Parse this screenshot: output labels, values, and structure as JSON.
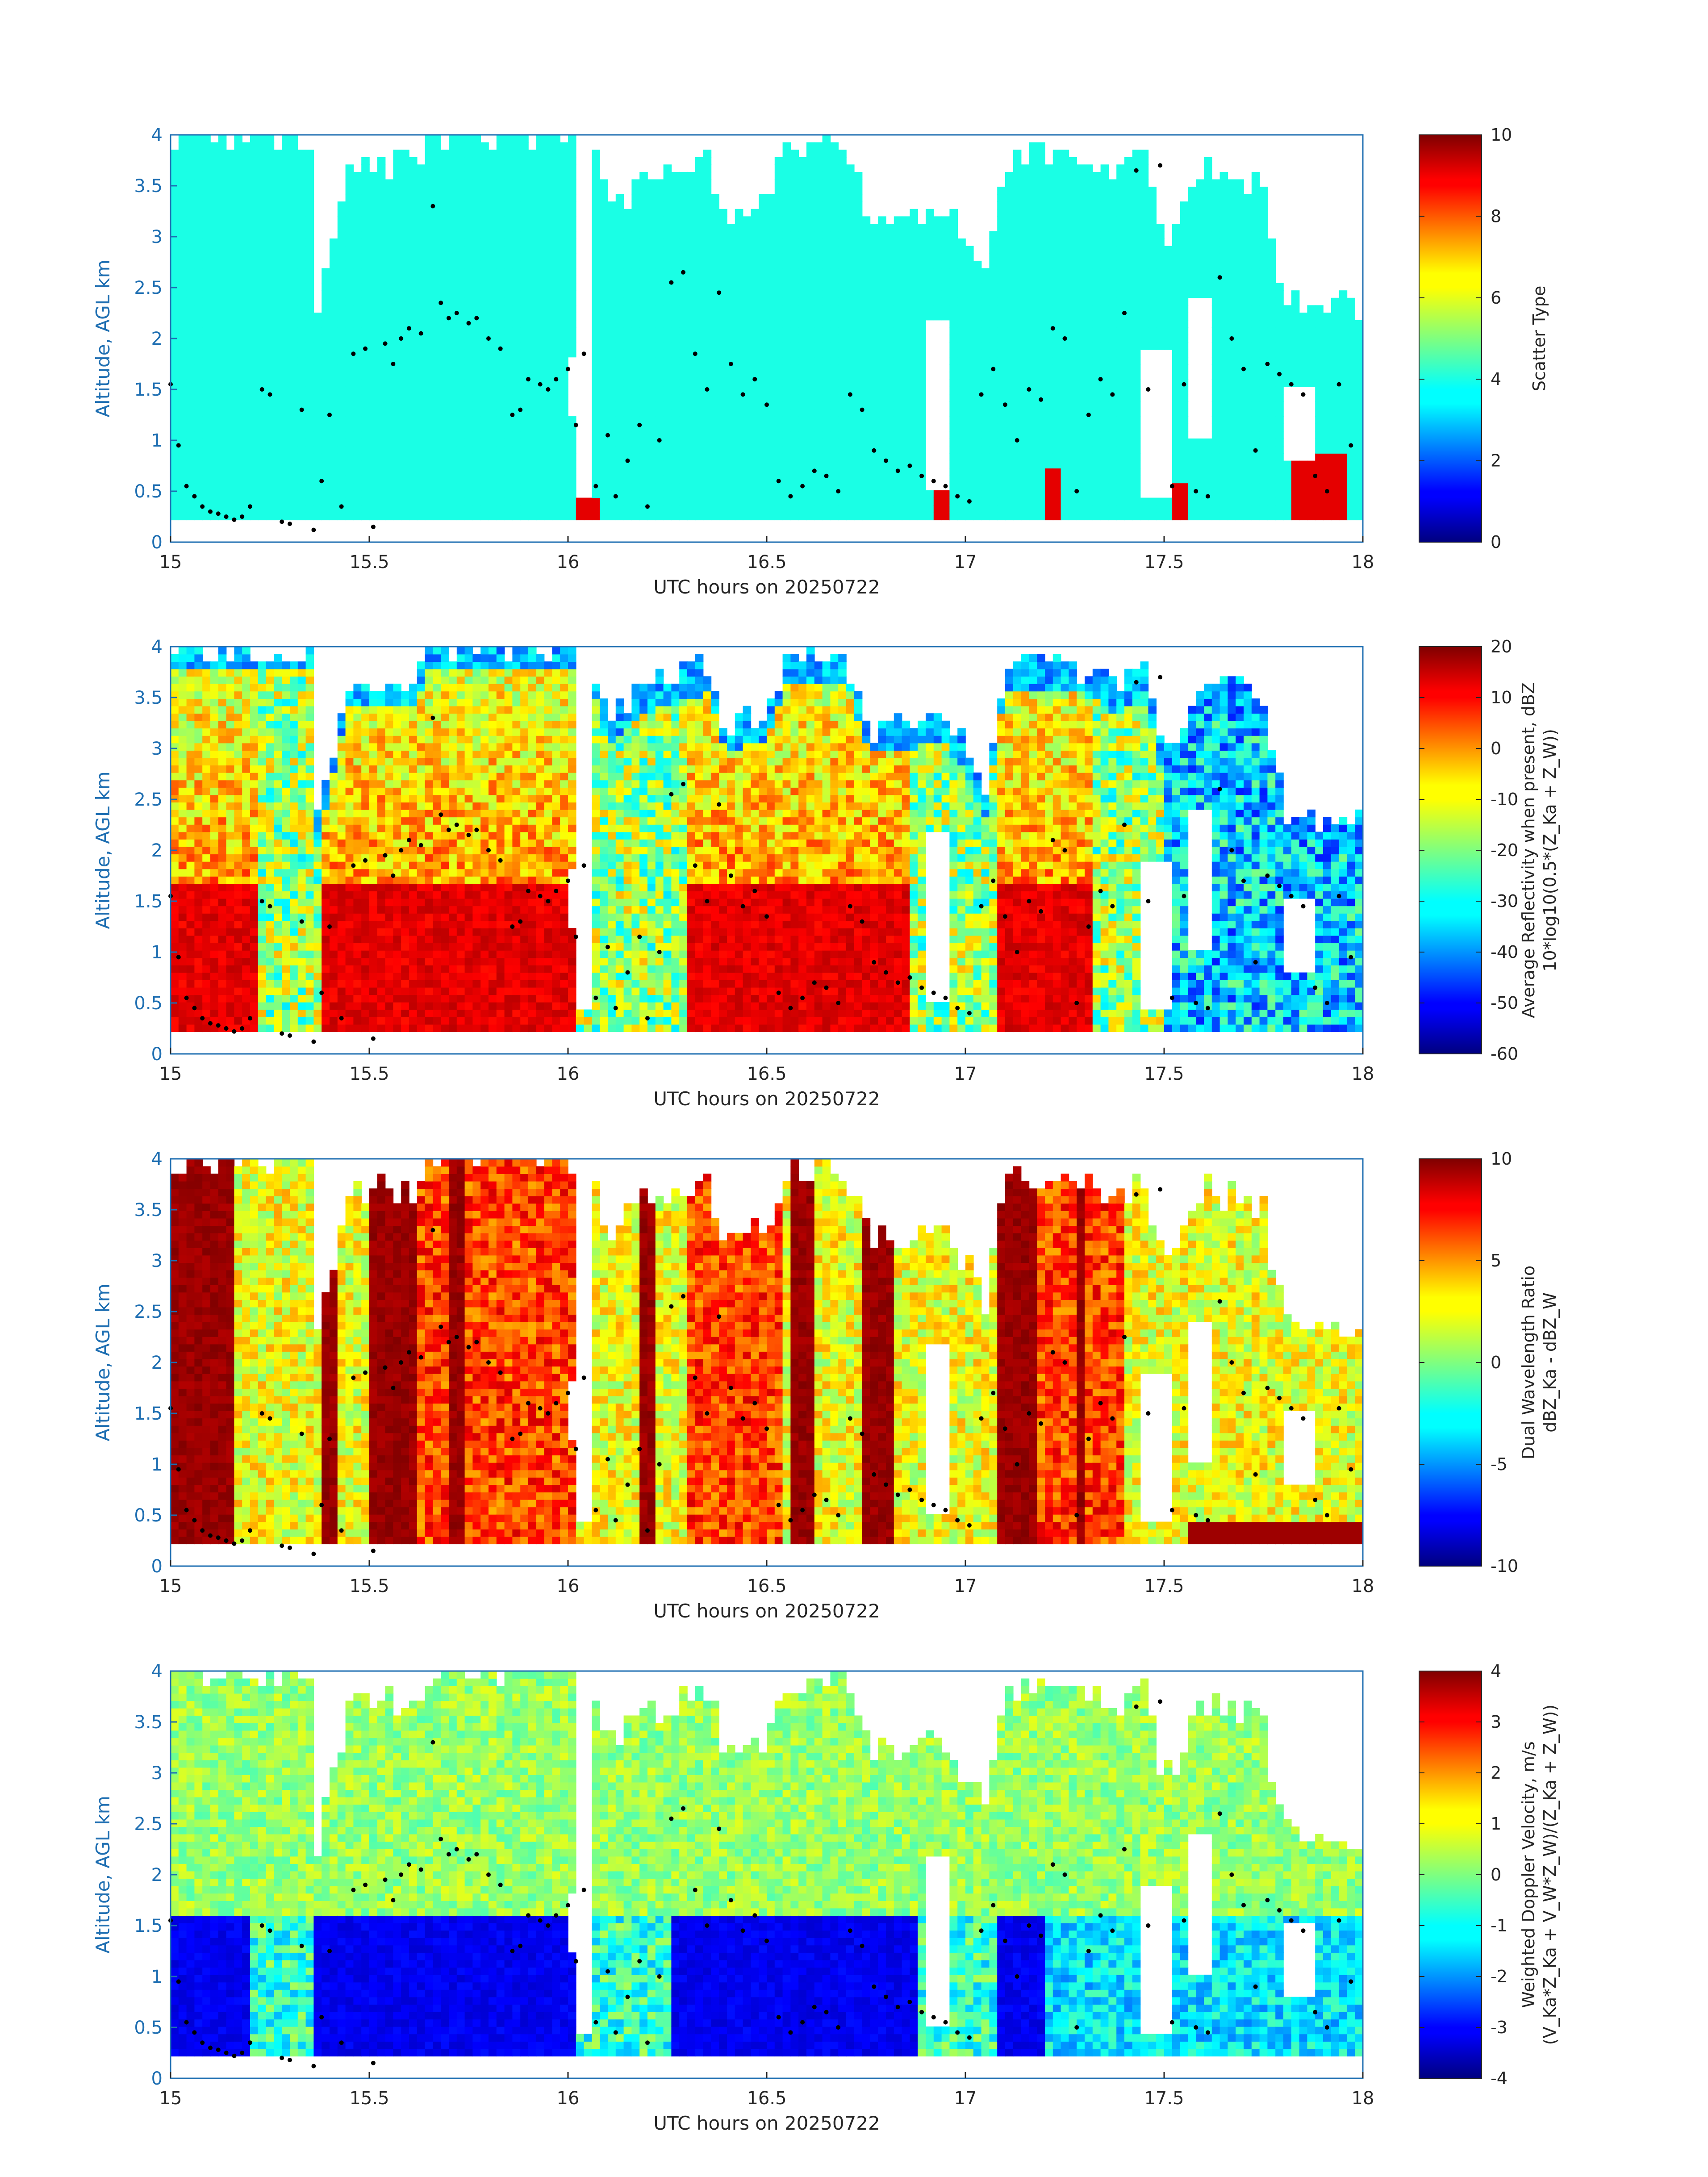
{
  "figure": {
    "background": "#ffffff",
    "axis_color": "#1f6fb2"
  },
  "chart_data": [
    {
      "type": "heatmap",
      "id": "scatter-type",
      "xlabel": "UTC hours on 20250722",
      "ylabel": "Altitude, AGL km",
      "xlim": [
        15,
        18
      ],
      "ylim": [
        0,
        4
      ],
      "xticks": [
        "15",
        "15.5",
        "16",
        "16.5",
        "17",
        "17.5",
        "18"
      ],
      "yticks": [
        "0",
        "0.5",
        "1",
        "1.5",
        "2",
        "2.5",
        "3",
        "3.5",
        "4"
      ],
      "colorbar": {
        "label_lines": [
          "Scatter Type"
        ],
        "clim": [
          0,
          10
        ],
        "ticks": [
          "0",
          "2",
          "4",
          "6",
          "8",
          "10"
        ],
        "colormap": "jet"
      },
      "dominant_value": 4,
      "secondary_value": 9
    },
    {
      "type": "heatmap",
      "id": "avg-reflectivity",
      "xlabel": "UTC hours on 20250722",
      "ylabel": "Altitude, AGL km",
      "xlim": [
        15,
        18
      ],
      "ylim": [
        0,
        4
      ],
      "xticks": [
        "15",
        "15.5",
        "16",
        "16.5",
        "17",
        "17.5",
        "18"
      ],
      "yticks": [
        "0",
        "0.5",
        "1",
        "1.5",
        "2",
        "2.5",
        "3",
        "3.5",
        "4"
      ],
      "colorbar": {
        "label_lines": [
          "Average Reflectivity when present, dBZ",
          "10*log10(0.5*(Z_Ka + Z_W))"
        ],
        "clim": [
          -60,
          20
        ],
        "ticks": [
          "-60",
          "-50",
          "-40",
          "-30",
          "-20",
          "-10",
          "0",
          "10",
          "20"
        ],
        "colormap": "jet"
      }
    },
    {
      "type": "heatmap",
      "id": "dual-wavelength-ratio",
      "xlabel": "UTC hours on 20250722",
      "ylabel": "Altitude, AGL km",
      "xlim": [
        15,
        18
      ],
      "ylim": [
        0,
        4
      ],
      "xticks": [
        "15",
        "15.5",
        "16",
        "16.5",
        "17",
        "17.5",
        "18"
      ],
      "yticks": [
        "0",
        "0.5",
        "1",
        "1.5",
        "2",
        "2.5",
        "3",
        "3.5",
        "4"
      ],
      "colorbar": {
        "label_lines": [
          "Dual Wavelength Ratio",
          "dBZ_Ka - dBZ_W"
        ],
        "clim": [
          -10,
          10
        ],
        "ticks": [
          "-10",
          "-5",
          "0",
          "5",
          "10"
        ],
        "colormap": "jet"
      }
    },
    {
      "type": "heatmap",
      "id": "weighted-doppler-velocity",
      "xlabel": "UTC hours on 20250722",
      "ylabel": "Altitude, AGL km",
      "xlim": [
        15,
        18
      ],
      "ylim": [
        0,
        4
      ],
      "xticks": [
        "15",
        "15.5",
        "16",
        "16.5",
        "17",
        "17.5",
        "18"
      ],
      "yticks": [
        "0",
        "0.5",
        "1",
        "1.5",
        "2",
        "2.5",
        "3",
        "3.5",
        "4"
      ],
      "colorbar": {
        "label_lines": [
          "Weighted Doppler Velocity, m/s",
          "(V_Ka*Z_Ka + V_W*Z_W)/(Z_Ka + Z_W))"
        ],
        "clim": [
          -4,
          4
        ],
        "ticks": [
          "-4",
          "-3",
          "-2",
          "-1",
          "0",
          "1",
          "2",
          "3",
          "4"
        ],
        "colormap": "jet"
      }
    }
  ],
  "overlay_points": {
    "x": [
      15.0,
      15.02,
      15.04,
      15.06,
      15.08,
      15.1,
      15.12,
      15.14,
      15.16,
      15.18,
      15.2,
      15.23,
      15.25,
      15.28,
      15.3,
      15.33,
      15.36,
      15.38,
      15.4,
      15.43,
      15.46,
      15.49,
      15.51,
      15.54,
      15.56,
      15.58,
      15.6,
      15.63,
      15.66,
      15.68,
      15.7,
      15.72,
      15.75,
      15.77,
      15.8,
      15.83,
      15.86,
      15.88,
      15.9,
      15.93,
      15.95,
      15.97,
      16.0,
      16.02,
      16.04,
      16.07,
      16.1,
      16.12,
      16.15,
      16.18,
      16.2,
      16.23,
      16.26,
      16.29,
      16.32,
      16.35,
      16.38,
      16.41,
      16.44,
      16.47,
      16.5,
      16.53,
      16.56,
      16.59,
      16.62,
      16.65,
      16.68,
      16.71,
      16.74,
      16.77,
      16.8,
      16.83,
      16.86,
      16.89,
      16.92,
      16.95,
      16.98,
      17.01,
      17.04,
      17.07,
      17.1,
      17.13,
      17.16,
      17.19,
      17.22,
      17.25,
      17.28,
      17.31,
      17.34,
      17.37,
      17.4,
      17.43,
      17.46,
      17.49,
      17.52,
      17.55,
      17.58,
      17.61,
      17.64,
      17.67,
      17.7,
      17.73,
      17.76,
      17.79,
      17.82,
      17.85,
      17.88,
      17.91,
      17.94,
      17.97
    ],
    "y": [
      1.55,
      0.95,
      0.55,
      0.45,
      0.35,
      0.3,
      0.28,
      0.25,
      0.22,
      0.25,
      0.35,
      1.5,
      1.45,
      0.2,
      0.18,
      1.3,
      0.12,
      0.6,
      1.25,
      0.35,
      1.85,
      1.9,
      0.15,
      1.95,
      1.75,
      2.0,
      2.1,
      2.05,
      3.3,
      2.35,
      2.2,
      2.25,
      2.15,
      2.2,
      2.0,
      1.9,
      1.25,
      1.3,
      1.6,
      1.55,
      1.5,
      1.6,
      1.7,
      1.15,
      1.85,
      0.55,
      1.05,
      0.45,
      0.8,
      1.15,
      0.35,
      1.0,
      2.55,
      2.65,
      1.85,
      1.5,
      2.45,
      1.75,
      1.45,
      1.6,
      1.35,
      0.6,
      0.45,
      0.55,
      0.7,
      0.65,
      0.5,
      1.45,
      1.3,
      0.9,
      0.8,
      0.7,
      0.75,
      0.65,
      0.6,
      0.55,
      0.45,
      0.4,
      1.45,
      1.7,
      1.35,
      1.0,
      1.5,
      1.4,
      2.1,
      2.0,
      0.5,
      1.25,
      1.6,
      1.45,
      2.25,
      3.65,
      1.5,
      3.7,
      0.55,
      1.55,
      0.5,
      0.45,
      2.6,
      2.0,
      1.7,
      0.9,
      1.75,
      1.65,
      1.55,
      1.45,
      0.65,
      0.5,
      1.55,
      0.95
    ]
  }
}
